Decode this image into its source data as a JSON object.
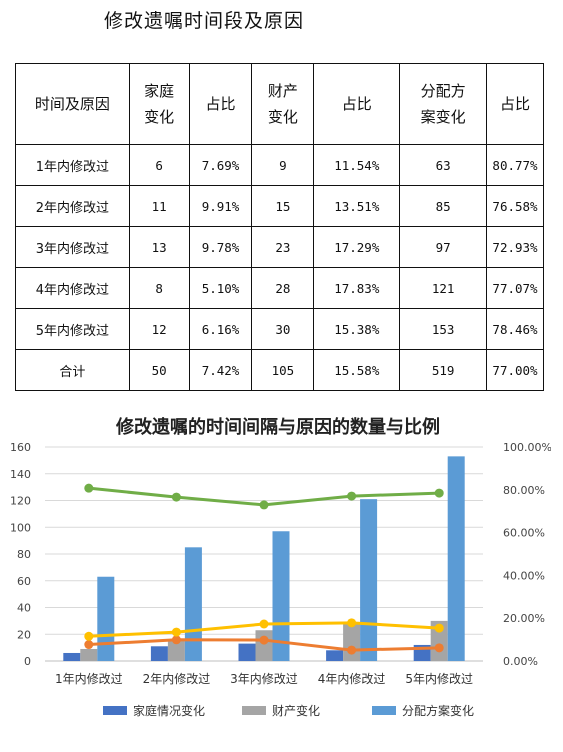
{
  "doc_title": "修改遗嘱时间段及原因",
  "table": {
    "headers": [
      "时间及原因",
      "家庭\n变化",
      "占比",
      "财产\n变化",
      "占比",
      "分配方\n案变化",
      "占比"
    ],
    "rows": [
      [
        "1年内修改过",
        "6",
        "7.69%",
        "9",
        "11.54%",
        "63",
        "80.77%"
      ],
      [
        "2年内修改过",
        "11",
        "9.91%",
        "15",
        "13.51%",
        "85",
        "76.58%"
      ],
      [
        "3年内修改过",
        "13",
        "9.78%",
        "23",
        "17.29%",
        "97",
        "72.93%"
      ],
      [
        "4年内修改过",
        "8",
        "5.10%",
        "28",
        "17.83%",
        "121",
        "77.07%"
      ],
      [
        "5年内修改过",
        "12",
        "6.16%",
        "30",
        "15.38%",
        "153",
        "78.46%"
      ],
      [
        "合计",
        "50",
        "7.42%",
        "105",
        "15.58%",
        "519",
        "77.00%"
      ]
    ]
  },
  "chart_data": {
    "type": "bar",
    "title": "修改遗嘱的时间间隔与原因的数量与比例",
    "categories": [
      "1年内修改过",
      "2年内修改过",
      "3年内修改过",
      "4年内修改过",
      "5年内修改过"
    ],
    "series": [
      {
        "name": "家庭情况变化",
        "type": "bar",
        "axis": "left",
        "color": "#4472c4",
        "values": [
          6,
          11,
          13,
          8,
          12
        ]
      },
      {
        "name": "财产变化",
        "type": "bar",
        "axis": "left",
        "color": "#a5a5a5",
        "values": [
          9,
          15,
          23,
          28,
          30
        ]
      },
      {
        "name": "分配方案变化",
        "type": "bar",
        "axis": "left",
        "color": "#5b9bd5",
        "values": [
          63,
          85,
          97,
          121,
          153
        ]
      },
      {
        "type": "line",
        "axis": "right",
        "color": "#ed7d31",
        "values": [
          0.0769,
          0.0991,
          0.0978,
          0.051,
          0.0616
        ]
      },
      {
        "type": "line",
        "axis": "right",
        "color": "#ffc000",
        "values": [
          0.1154,
          0.1351,
          0.1729,
          0.1783,
          0.1538
        ]
      },
      {
        "type": "line",
        "axis": "right",
        "color": "#70ad47",
        "values": [
          0.8077,
          0.7658,
          0.7293,
          0.7707,
          0.7846
        ]
      }
    ],
    "y_left": {
      "min": 0,
      "max": 160,
      "ticks": [
        "0",
        "20",
        "40",
        "60",
        "80",
        "100",
        "120",
        "140",
        "160"
      ]
    },
    "y_right": {
      "min": 0,
      "max": 1,
      "ticks": [
        "0.00%",
        "20.00%",
        "40.00%",
        "60.00%",
        "80.00%",
        "100.00%"
      ]
    },
    "grid": true,
    "legend": "bottom"
  }
}
